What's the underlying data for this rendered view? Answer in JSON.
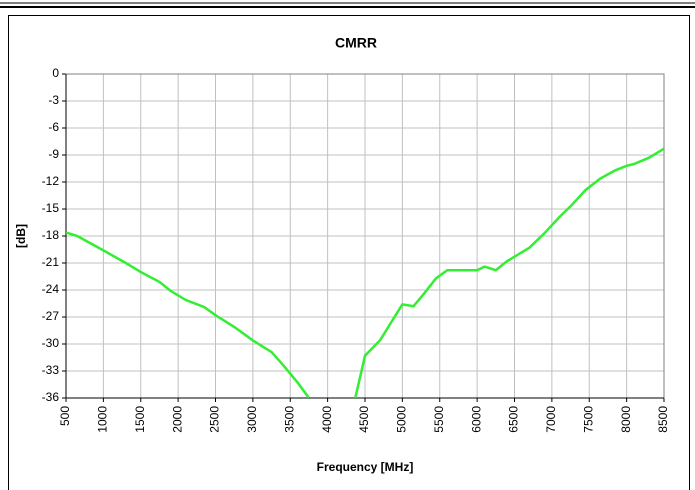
{
  "chart_data": {
    "type": "line",
    "title": "CMRR",
    "x_label": "Frequency [MHz]",
    "y_label": "[dB]",
    "x": [
      500,
      650,
      1000,
      1300,
      1500,
      1750,
      1900,
      2100,
      2350,
      2500,
      2750,
      3000,
      3250,
      3400,
      3600,
      3750,
      4000,
      4370,
      4500,
      4700,
      4850,
      5000,
      5150,
      5300,
      5450,
      5600,
      5750,
      6000,
      6100,
      6250,
      6400,
      6700,
      6900,
      7100,
      7250,
      7450,
      7650,
      7850,
      8000,
      8100,
      8300,
      8500
    ],
    "series": [
      {
        "name": "CMRR",
        "color": "#33ee33",
        "values": [
          -17.6,
          -18.0,
          -19.6,
          -21.0,
          -22.0,
          -23.1,
          -24.1,
          -25.1,
          -25.9,
          -26.8,
          -28.1,
          -29.6,
          -30.9,
          -32.3,
          -34.3,
          -36.0,
          null,
          -36.0,
          -31.3,
          -29.6,
          -27.6,
          -25.6,
          -25.8,
          -24.3,
          -22.7,
          -21.8,
          -21.8,
          -21.8,
          -21.4,
          -21.8,
          -20.8,
          -19.3,
          -17.7,
          -15.9,
          -14.7,
          -12.9,
          -11.6,
          -10.7,
          -10.2,
          -10.0,
          -9.3,
          -8.3
        ]
      }
    ],
    "xlim": [
      500,
      8500
    ],
    "xticks": [
      500,
      1000,
      1500,
      2000,
      2500,
      3000,
      3500,
      4000,
      4500,
      5000,
      5500,
      6000,
      6500,
      7000,
      7500,
      8000,
      8500
    ],
    "ylim": [
      -36,
      0
    ],
    "yticks": [
      0,
      -3,
      -6,
      -9,
      -12,
      -15,
      -18,
      -21,
      -24,
      -27,
      -30,
      -33,
      -36
    ],
    "grid": true
  }
}
